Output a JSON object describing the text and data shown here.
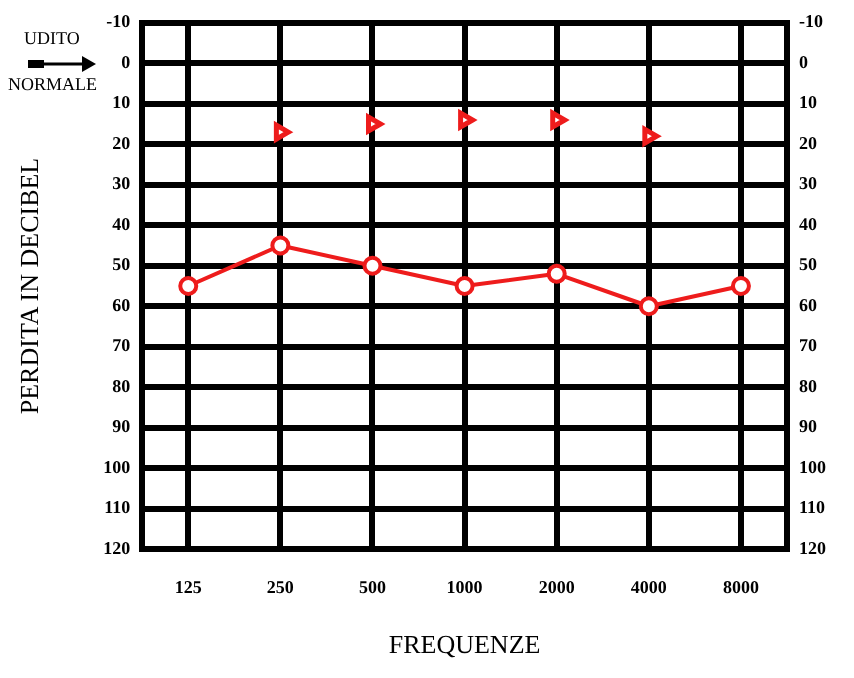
{
  "chart_data": {
    "type": "line",
    "xlabel": "FREQUENZE",
    "ylabel": "PERDITA IN DECIBEL",
    "categories": [
      "125",
      "250",
      "500",
      "1000",
      "2000",
      "4000",
      "8000"
    ],
    "series": [
      {
        "color": "#ee1c1c",
        "marker": "circle",
        "line_style": "solid",
        "values": [
          55,
          45,
          50,
          55,
          52,
          60,
          55
        ]
      },
      {
        "type": "scatter",
        "color": "#ee1c1c",
        "marker": "triangle",
        "values": [
          null,
          17,
          15,
          14,
          14,
          18,
          null
        ]
      }
    ],
    "ylim": [
      120,
      -10
    ],
    "yticks": [
      -10,
      0,
      10,
      20,
      30,
      40,
      50,
      60,
      70,
      80,
      90,
      100,
      110,
      120
    ],
    "y2lim": [
      120,
      -10
    ],
    "y2ticks": [
      -10,
      0,
      10,
      20,
      30,
      40,
      50,
      60,
      70,
      80,
      90,
      100,
      110,
      120
    ],
    "annotations": [
      "UDITO",
      "NORMALE"
    ],
    "grid": true,
    "legend": false
  }
}
